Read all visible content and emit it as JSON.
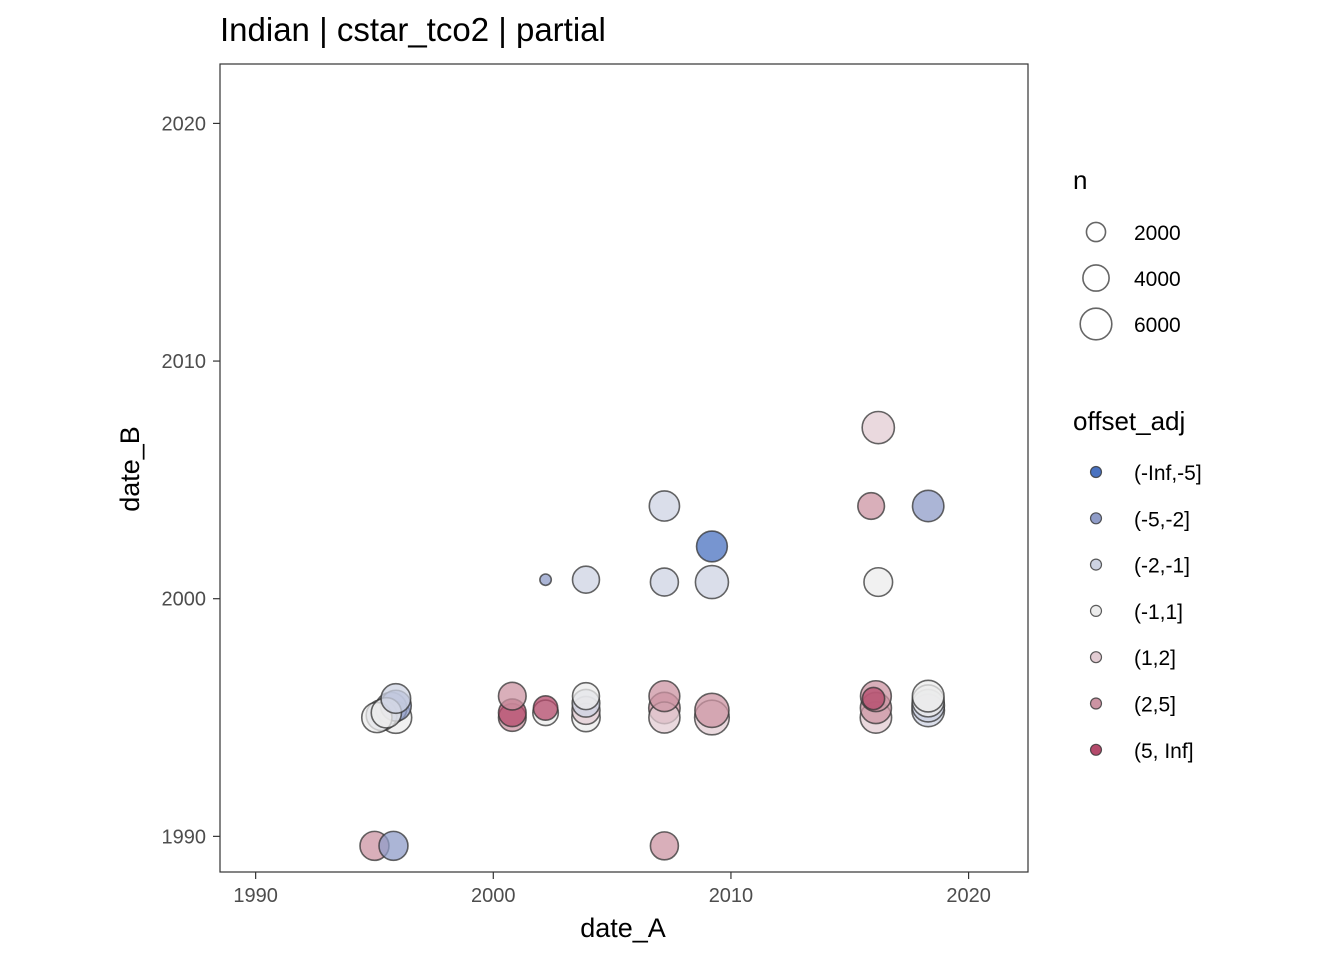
{
  "chart_data": {
    "type": "scatter",
    "title": "Indian | cstar_tco2 | partial",
    "xlabel": "date_A",
    "ylabel": "date_B",
    "xlim": [
      1988.5,
      2022.5
    ],
    "ylim": [
      1988.5,
      2022.5
    ],
    "xticks": [
      1990,
      2000,
      2010,
      2020
    ],
    "yticks": [
      1990,
      2000,
      2010,
      2020
    ],
    "grid": false,
    "legend_position": "right",
    "size_legend": {
      "title": "n",
      "entries": [
        {
          "label": "2000",
          "n": 2000
        },
        {
          "label": "4000",
          "n": 4000
        },
        {
          "label": "6000",
          "n": 6000
        }
      ]
    },
    "color_legend": {
      "title": "offset_adj",
      "entries": [
        {
          "label": "(-Inf,-5]",
          "color": "#4a72c0"
        },
        {
          "label": "(-5,-2]",
          "color": "#8f9cc8"
        },
        {
          "label": "(-2,-1]",
          "color": "#cdd3e3"
        },
        {
          "label": "(-1,1]",
          "color": "#ececec"
        },
        {
          "label": "(1,2]",
          "color": "#e3ccd3"
        },
        {
          "label": "(2,5]",
          "color": "#cc94a3"
        },
        {
          "label": "(5, Inf]",
          "color": "#b44a6b"
        }
      ]
    },
    "points": [
      {
        "x": 1995.1,
        "y": 1995.0,
        "n": 4000,
        "group": "(-1,1]"
      },
      {
        "x": 1995.3,
        "y": 1995.1,
        "n": 4200,
        "group": "(-2,-1]"
      },
      {
        "x": 1995.5,
        "y": 1995.2,
        "n": 4000,
        "group": "(-1,1]"
      },
      {
        "x": 1995.7,
        "y": 1995.4,
        "n": 4400,
        "group": "(-2,-1]"
      },
      {
        "x": 1995.9,
        "y": 1995.0,
        "n": 4500,
        "group": "(-1,1]"
      },
      {
        "x": 1995.9,
        "y": 1995.5,
        "n": 4200,
        "group": "(-5,-2]"
      },
      {
        "x": 1995.9,
        "y": 1995.8,
        "n": 3800,
        "group": "(-2,-1]"
      },
      {
        "x": 1995.0,
        "y": 1989.6,
        "n": 3600,
        "group": "(2,5]"
      },
      {
        "x": 1995.8,
        "y": 1989.6,
        "n": 3600,
        "group": "(-5,-2]"
      },
      {
        "x": 2000.8,
        "y": 1995.0,
        "n": 3200,
        "group": "(2,5]"
      },
      {
        "x": 2000.8,
        "y": 1995.2,
        "n": 3200,
        "group": "(5, Inf]"
      },
      {
        "x": 2000.8,
        "y": 1995.9,
        "n": 3200,
        "group": "(2,5]"
      },
      {
        "x": 2002.2,
        "y": 1995.2,
        "n": 2600,
        "group": "(-1,1]"
      },
      {
        "x": 2002.2,
        "y": 1995.4,
        "n": 2300,
        "group": "(5, Inf]"
      },
      {
        "x": 2002.2,
        "y": 2000.8,
        "n": 200,
        "group": "(-5,-2]"
      },
      {
        "x": 2003.9,
        "y": 1995.0,
        "n": 3400,
        "group": "(-1,1]"
      },
      {
        "x": 2003.9,
        "y": 1995.3,
        "n": 3300,
        "group": "(1,2]"
      },
      {
        "x": 2003.9,
        "y": 1995.6,
        "n": 3200,
        "group": "(-2,-1]"
      },
      {
        "x": 2003.9,
        "y": 1995.9,
        "n": 3000,
        "group": "(-1,1]"
      },
      {
        "x": 2003.9,
        "y": 2000.8,
        "n": 3000,
        "group": "(-2,-1]"
      },
      {
        "x": 2007.2,
        "y": 1995.0,
        "n": 4300,
        "group": "(1,2]"
      },
      {
        "x": 2007.2,
        "y": 1995.4,
        "n": 4400,
        "group": "(2,5]"
      },
      {
        "x": 2007.2,
        "y": 1995.9,
        "n": 4200,
        "group": "(2,5]"
      },
      {
        "x": 2007.2,
        "y": 2000.7,
        "n": 3300,
        "group": "(-2,-1]"
      },
      {
        "x": 2007.2,
        "y": 2003.9,
        "n": 4000,
        "group": "(-2,-1]"
      },
      {
        "x": 2007.2,
        "y": 1989.6,
        "n": 3300,
        "group": "(2,5]"
      },
      {
        "x": 2009.2,
        "y": 1995.0,
        "n": 5600,
        "group": "(1,2]"
      },
      {
        "x": 2009.2,
        "y": 1995.3,
        "n": 5400,
        "group": "(2,5]"
      },
      {
        "x": 2009.2,
        "y": 2000.7,
        "n": 5000,
        "group": "(-2,-1]"
      },
      {
        "x": 2009.2,
        "y": 2002.2,
        "n": 4200,
        "group": "(-Inf,-5]"
      },
      {
        "x": 2016.1,
        "y": 1995.0,
        "n": 4400,
        "group": "(1,2]"
      },
      {
        "x": 2016.1,
        "y": 1995.4,
        "n": 4300,
        "group": "(2,5]"
      },
      {
        "x": 2016.1,
        "y": 1995.9,
        "n": 4200,
        "group": "(2,5]"
      },
      {
        "x": 2016.0,
        "y": 1995.8,
        "n": 1800,
        "group": "(5, Inf]"
      },
      {
        "x": 2015.9,
        "y": 2003.9,
        "n": 2900,
        "group": "(2,5]"
      },
      {
        "x": 2016.2,
        "y": 2000.7,
        "n": 3500,
        "group": "(-1,1]"
      },
      {
        "x": 2016.2,
        "y": 2007.2,
        "n": 4700,
        "group": "(1,2]"
      },
      {
        "x": 2018.3,
        "y": 1995.3,
        "n": 4800,
        "group": "(-2,-1]"
      },
      {
        "x": 2018.3,
        "y": 1995.5,
        "n": 4800,
        "group": "(-2,-1]"
      },
      {
        "x": 2018.3,
        "y": 1995.7,
        "n": 4600,
        "group": "(-1,1]"
      },
      {
        "x": 2018.3,
        "y": 1995.9,
        "n": 4500,
        "group": "(-1,1]"
      },
      {
        "x": 2018.3,
        "y": 2003.9,
        "n": 4400,
        "group": "(-5,-2]"
      }
    ]
  }
}
